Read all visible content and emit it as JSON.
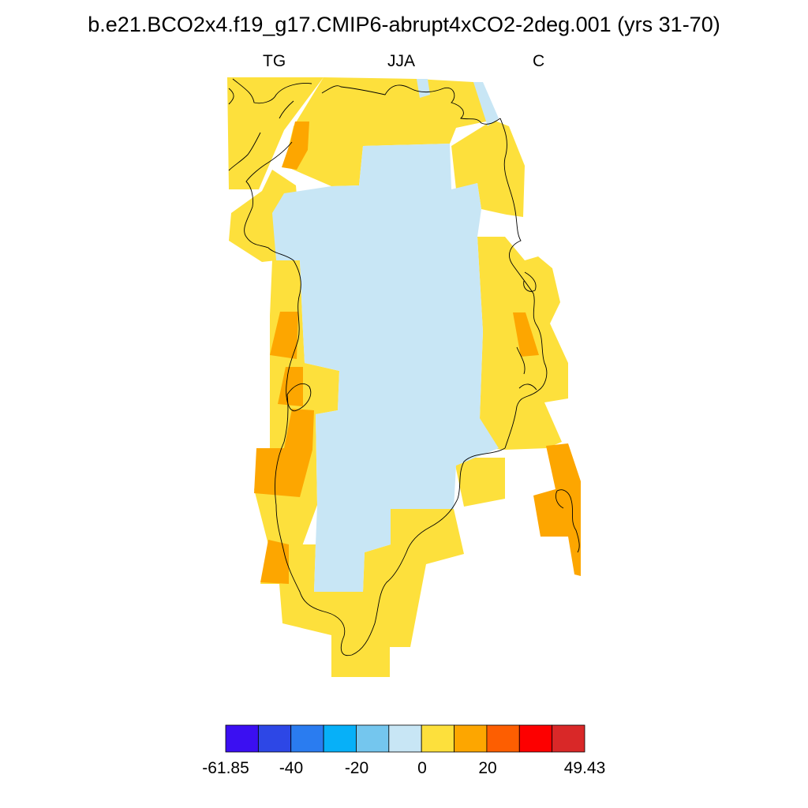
{
  "title": "b.e21.BCO2x4.f19_g17.CMIP6-abrupt4xCO2-2deg.001 (yrs 31-70)",
  "subtitles": {
    "left": "TG",
    "center": "JJA",
    "right": "C"
  },
  "map": {
    "region": "Greenland",
    "colors": {
      "land_near_zero": "#c8e6f5",
      "warm_0_10": "#fde03c",
      "warm_10_20": "#fda600",
      "coast": "#000000"
    }
  },
  "colorbar": {
    "colors": [
      "#3b0ff2",
      "#2d47e6",
      "#2a7cf0",
      "#07b0f8",
      "#74c6ee",
      "#c8e6f5",
      "#fde03c",
      "#fda600",
      "#fd5e01",
      "#fd0000",
      "#d92828"
    ],
    "labels": [
      "-61.85",
      "-40",
      "-20",
      "0",
      "20",
      "49.43"
    ]
  }
}
